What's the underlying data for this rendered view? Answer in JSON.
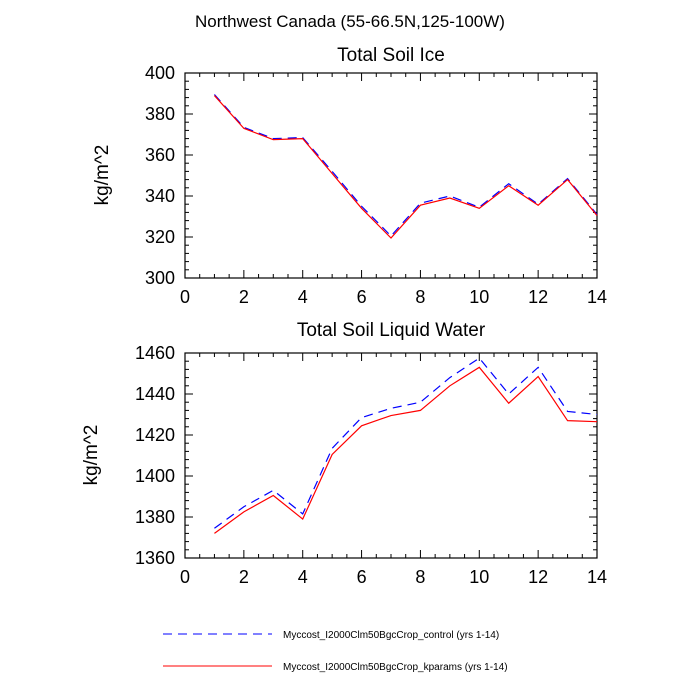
{
  "figure_title": "Northwest Canada (55-66.5N,125-100W)",
  "chart_data": [
    {
      "type": "line",
      "title": "Total Soil Ice",
      "xlabel": "",
      "ylabel": "kg/m^2",
      "xlim": [
        0,
        14
      ],
      "ylim": [
        300,
        400
      ],
      "xticks": [
        0,
        2,
        4,
        6,
        8,
        10,
        12,
        14
      ],
      "yticks": [
        300,
        320,
        340,
        360,
        380,
        400
      ],
      "x": [
        1,
        2,
        3,
        4,
        5,
        6,
        7,
        8,
        9,
        10,
        11,
        12,
        13,
        14
      ],
      "series": [
        {
          "name": "Myccost_I2000Clm50BgcCrop_control (yrs 1-14)",
          "color": "#0000ff",
          "dash": "dashed",
          "values": [
            389.5,
            373.5,
            368.0,
            368.5,
            352.0,
            335.0,
            320.5,
            336.5,
            340.0,
            334.5,
            346.0,
            336.0,
            348.5,
            331.0
          ]
        },
        {
          "name": "Myccost_I2000Clm50BgcCrop_kparams (yrs 1-14)",
          "color": "#ff0000",
          "dash": "solid",
          "values": [
            389.0,
            373.0,
            367.5,
            368.0,
            351.0,
            334.0,
            319.5,
            335.5,
            339.0,
            334.0,
            345.0,
            335.5,
            348.0,
            330.5
          ]
        }
      ]
    },
    {
      "type": "line",
      "title": "Total Soil Liquid Water",
      "xlabel": "",
      "ylabel": "kg/m^2",
      "xlim": [
        0,
        14
      ],
      "ylim": [
        1360,
        1460
      ],
      "xticks": [
        0,
        2,
        4,
        6,
        8,
        10,
        12,
        14
      ],
      "yticks": [
        1360,
        1380,
        1400,
        1420,
        1440,
        1460
      ],
      "x": [
        1,
        2,
        3,
        4,
        5,
        6,
        7,
        8,
        9,
        10,
        11,
        12,
        13,
        14
      ],
      "series": [
        {
          "name": "Myccost_I2000Clm50BgcCrop_control (yrs 1-14)",
          "color": "#0000ff",
          "dash": "dashed",
          "values": [
            1374.5,
            1385.0,
            1393.0,
            1381.5,
            1413.5,
            1428.5,
            1433.0,
            1436.0,
            1448.0,
            1457.5,
            1440.0,
            1453.0,
            1431.5,
            1430.0
          ]
        },
        {
          "name": "Myccost_I2000Clm50BgcCrop_kparams (yrs 1-14)",
          "color": "#ff0000",
          "dash": "solid",
          "values": [
            1372.0,
            1382.5,
            1390.5,
            1379.0,
            1410.5,
            1424.5,
            1429.5,
            1432.0,
            1444.0,
            1453.0,
            1435.5,
            1448.5,
            1427.0,
            1426.5
          ]
        }
      ]
    }
  ],
  "legend": [
    {
      "label": "Myccost_I2000Clm50BgcCrop_control (yrs 1-14)",
      "color": "#0000ff",
      "dash": "dashed"
    },
    {
      "label": "Myccost_I2000Clm50BgcCrop_kparams (yrs 1-14)",
      "color": "#ff0000",
      "dash": "solid"
    }
  ]
}
